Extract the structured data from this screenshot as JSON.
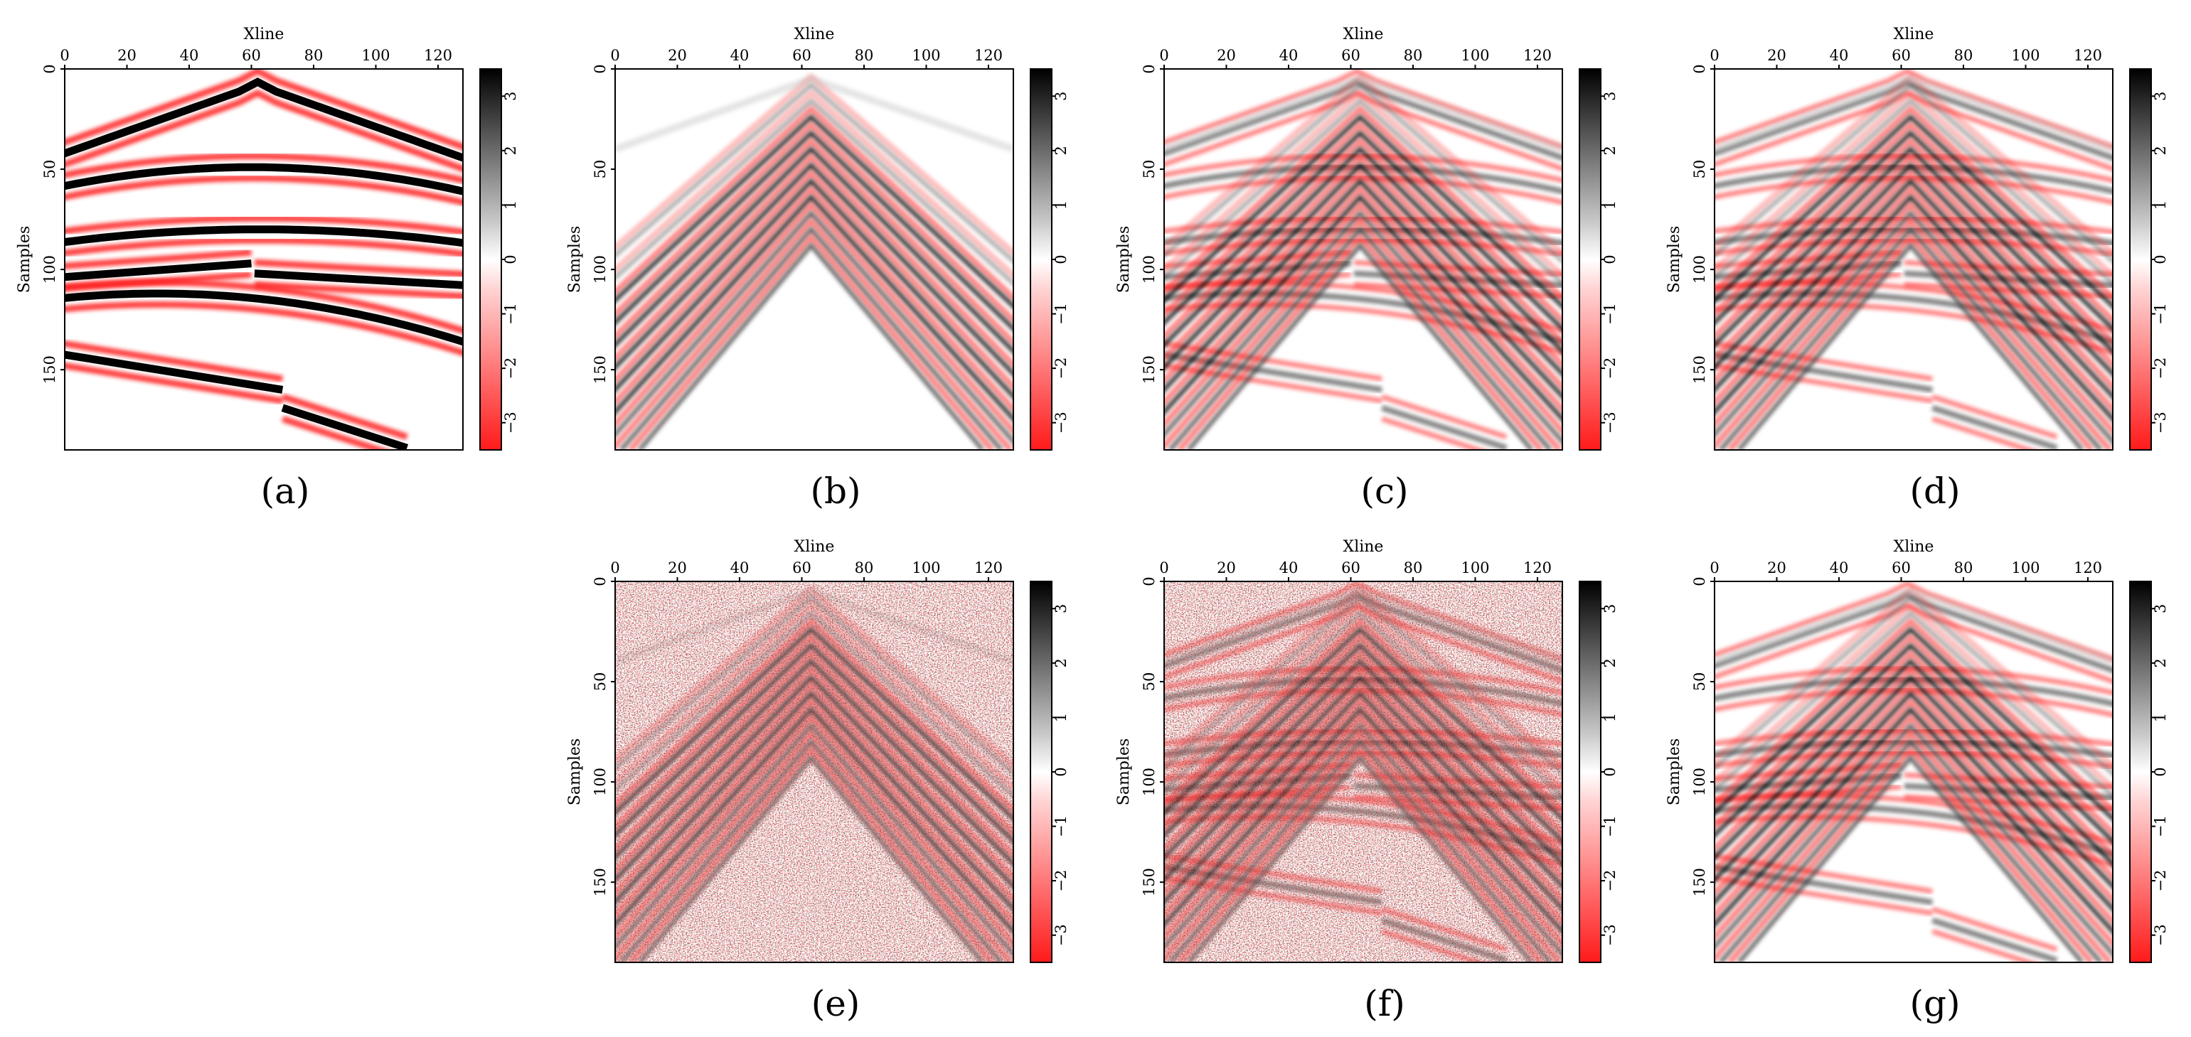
{
  "figure": {
    "colors": {
      "negative": "#ff1a1a",
      "zero": "#ffffff",
      "positive": "#000000",
      "frame": "#000000"
    }
  },
  "chart_data": [
    {
      "panel": "(a)",
      "type": "heatmap",
      "title": "",
      "xlabel": "Xline",
      "ylabel": "Samples",
      "xlim": [
        0,
        128
      ],
      "ylim": [
        190,
        0
      ],
      "xticks": [
        "0",
        "20",
        "40",
        "60",
        "80",
        "100",
        "120"
      ],
      "yticks": [
        "0",
        "50",
        "100",
        "150"
      ],
      "colorbar_ticks": [
        "3",
        "2",
        "1",
        "0",
        "-1",
        "-2",
        "-3"
      ],
      "colorbar_range": [
        -3.5,
        3.5
      ],
      "content": "synthetic model: hyperbolic and dipping reflection events with a fault",
      "has_diffractions": false,
      "has_events": true,
      "noise": false
    },
    {
      "panel": "(b)",
      "type": "heatmap",
      "title": "",
      "xlabel": "Xline",
      "ylabel": "Samples",
      "xlim": [
        0,
        128
      ],
      "ylim": [
        190,
        0
      ],
      "xticks": [
        "0",
        "20",
        "40",
        "60",
        "80",
        "100",
        "120"
      ],
      "yticks": [
        "0",
        "50",
        "100",
        "150"
      ],
      "colorbar_ticks": [
        "3",
        "2",
        "1",
        "0",
        "-1",
        "-2",
        "-3"
      ],
      "colorbar_range": [
        -3.5,
        3.5
      ],
      "content": "diffraction-like steep events centered at Xline 63",
      "has_diffractions": true,
      "has_events": false,
      "noise": false
    },
    {
      "panel": "(c)",
      "type": "heatmap",
      "title": "",
      "xlabel": "Xline",
      "ylabel": "Samples",
      "xlim": [
        0,
        128
      ],
      "ylim": [
        190,
        0
      ],
      "xticks": [
        "0",
        "20",
        "40",
        "60",
        "80",
        "100",
        "120"
      ],
      "yticks": [
        "0",
        "50",
        "100",
        "150"
      ],
      "colorbar_ticks": [
        "3",
        "2",
        "1",
        "0",
        "-1",
        "-2",
        "-3"
      ],
      "colorbar_range": [
        -3.5,
        3.5
      ],
      "content": "combined data: reflections plus diffractions",
      "has_diffractions": true,
      "has_events": true,
      "noise": false
    },
    {
      "panel": "(d)",
      "type": "heatmap",
      "title": "",
      "xlabel": "Xline",
      "ylabel": "Samples",
      "xlim": [
        0,
        128
      ],
      "ylim": [
        190,
        0
      ],
      "xticks": [
        "0",
        "20",
        "40",
        "60",
        "80",
        "100",
        "120"
      ],
      "yticks": [
        "0",
        "50",
        "100",
        "150"
      ],
      "colorbar_ticks": [
        "3",
        "2",
        "1",
        "0",
        "-1",
        "-2",
        "-3"
      ],
      "colorbar_range": [
        -3.5,
        3.5
      ],
      "content": "reconstructed combined data",
      "has_diffractions": true,
      "has_events": true,
      "noise": false
    },
    {
      "panel": "(e)",
      "type": "heatmap",
      "title": "",
      "xlabel": "Xline",
      "ylabel": "Samples",
      "xlim": [
        0,
        128
      ],
      "ylim": [
        190,
        0
      ],
      "xticks": [
        "0",
        "20",
        "40",
        "60",
        "80",
        "100",
        "120"
      ],
      "yticks": [
        "0",
        "50",
        "100",
        "150"
      ],
      "colorbar_ticks": [
        "3",
        "2",
        "1",
        "0",
        "-1",
        "-2",
        "-3"
      ],
      "colorbar_range": [
        -3.5,
        3.5
      ],
      "content": "noisy diffraction data",
      "has_diffractions": true,
      "has_events": false,
      "noise": true
    },
    {
      "panel": "(f)",
      "type": "heatmap",
      "title": "",
      "xlabel": "Xline",
      "ylabel": "Samples",
      "xlim": [
        0,
        128
      ],
      "ylim": [
        190,
        0
      ],
      "xticks": [
        "0",
        "20",
        "40",
        "60",
        "80",
        "100",
        "120"
      ],
      "yticks": [
        "0",
        "50",
        "100",
        "150"
      ],
      "colorbar_ticks": [
        "3",
        "2",
        "1",
        "0",
        "-1",
        "-2",
        "-3"
      ],
      "colorbar_range": [
        -3.5,
        3.5
      ],
      "content": "noisy combined data",
      "has_diffractions": true,
      "has_events": true,
      "noise": true
    },
    {
      "panel": "(g)",
      "type": "heatmap",
      "title": "",
      "xlabel": "Xline",
      "ylabel": "Samples",
      "xlim": [
        0,
        128
      ],
      "ylim": [
        190,
        0
      ],
      "xticks": [
        "0",
        "20",
        "40",
        "60",
        "80",
        "100",
        "120"
      ],
      "yticks": [
        "0",
        "50",
        "100",
        "150"
      ],
      "colorbar_ticks": [
        "3",
        "2",
        "1",
        "0",
        "-1",
        "-2",
        "-3"
      ],
      "colorbar_range": [
        -3.5,
        3.5
      ],
      "content": "denoised combined data",
      "has_diffractions": true,
      "has_events": true,
      "noise": false
    }
  ]
}
